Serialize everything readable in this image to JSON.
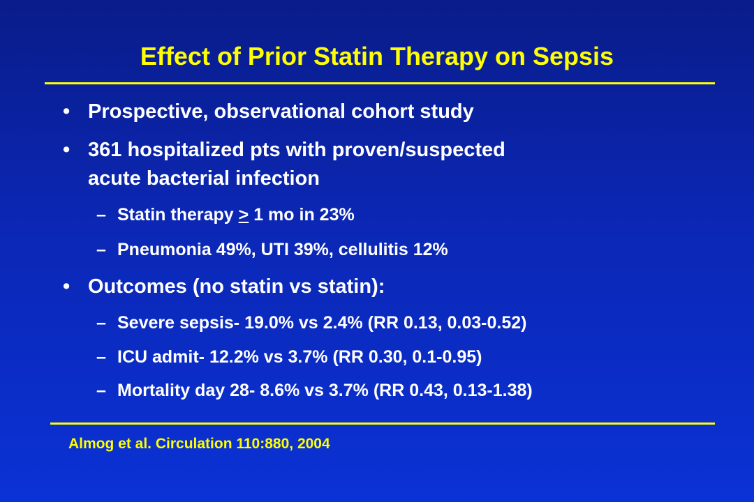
{
  "slide": {
    "title": "Effect of Prior Statin Therapy on Sepsis",
    "bullets": [
      {
        "marker": "•",
        "text": "Prospective, observational cohort study"
      },
      {
        "marker": "•",
        "text": "361 hospitalized pts with proven/suspected",
        "continuation": "acute bacterial infection"
      },
      {
        "marker": "–",
        "pre": "Statin therapy ",
        "underlined": ">",
        "post": " 1 mo in 23%"
      },
      {
        "marker": "–",
        "text": "Pneumonia 49%, UTI 39%, cellulitis 12%"
      },
      {
        "marker": "•",
        "text": "Outcomes (no statin vs statin):"
      },
      {
        "marker": "–",
        "text": "Severe sepsis- 19.0% vs 2.4% (RR 0.13, 0.03-0.52)"
      },
      {
        "marker": "–",
        "text": "ICU admit- 12.2% vs 3.7% (RR 0.30, 0.1-0.95)"
      },
      {
        "marker": "–",
        "text": "Mortality day 28- 8.6% vs 3.7% (RR 0.43, 0.13-1.38)"
      }
    ],
    "citation": "Almog et al. Circulation 110:880, 2004"
  },
  "colors": {
    "background_top": "#0a1c8a",
    "background_bottom": "#0b32d6",
    "title": "#ffff00",
    "body_text": "#ffffff",
    "citation": "#ffff00",
    "rule": "#ffff00"
  }
}
